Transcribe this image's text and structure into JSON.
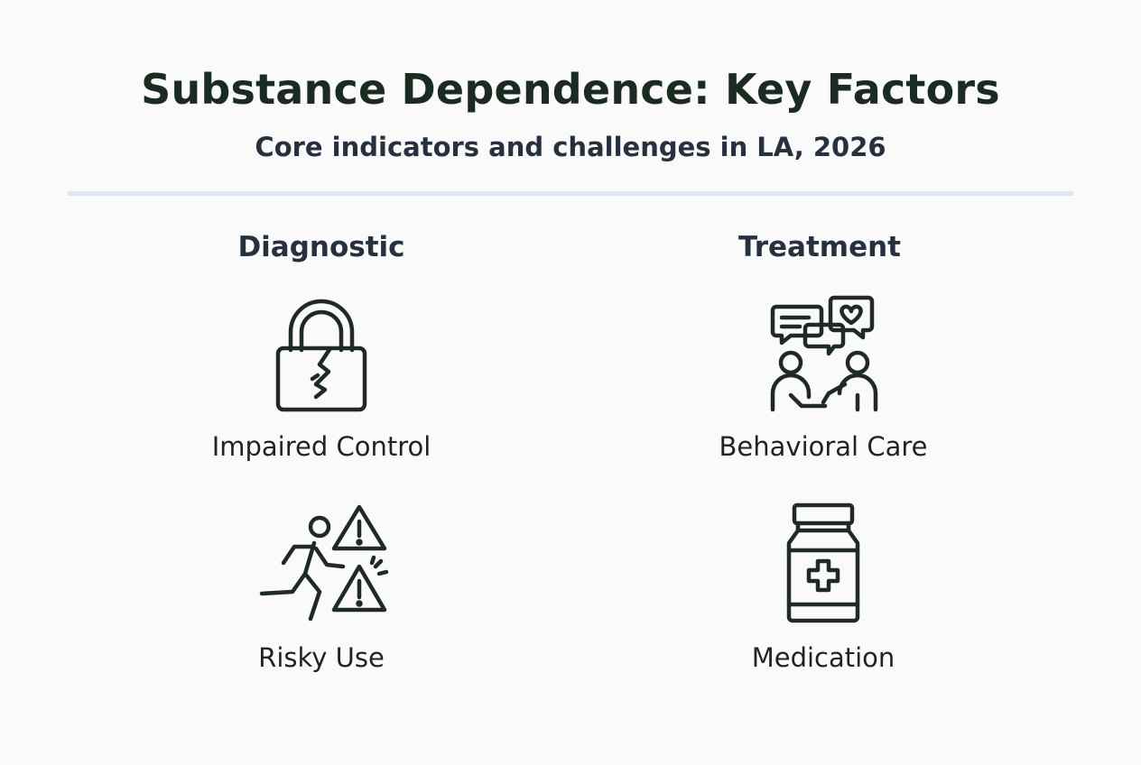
{
  "title": "Substance Dependence: Key Factors",
  "subtitle": "Core indicators and challenges in LA, 2026",
  "columns": [
    {
      "heading": "Diagnostic",
      "items": [
        {
          "label": "Impaired Control",
          "icon": "broken-padlock-icon"
        },
        {
          "label": "Risky Use",
          "icon": "running-person-warning-icon"
        }
      ]
    },
    {
      "heading": "Treatment",
      "items": [
        {
          "label": "Behavioral Care",
          "icon": "counseling-conversation-icon"
        },
        {
          "label": "Medication",
          "icon": "medicine-bottle-icon"
        }
      ]
    }
  ],
  "colors": {
    "title": "#1c2b22",
    "heading": "#27303f",
    "icon_stroke": "#1f2a24",
    "divider": "#dde7f3",
    "background": "#fafafa"
  }
}
